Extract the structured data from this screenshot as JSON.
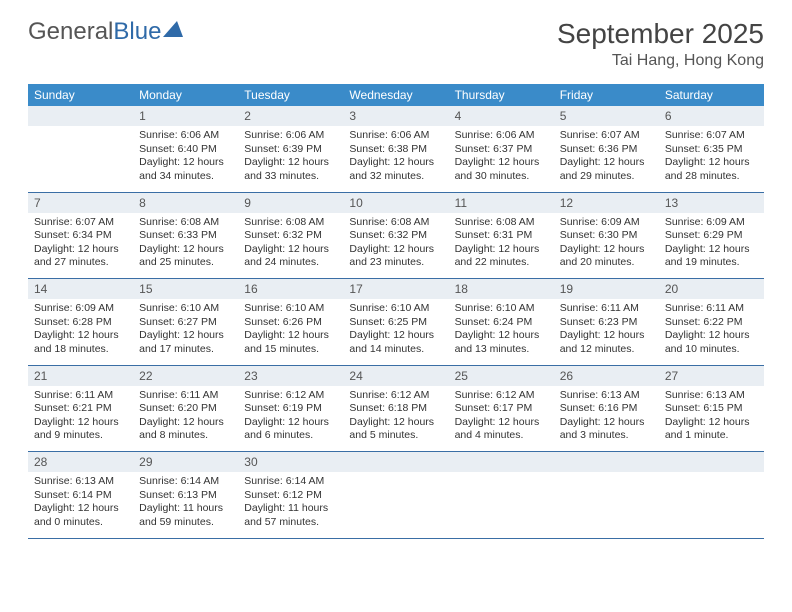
{
  "brand": {
    "name1": "General",
    "name2": "Blue"
  },
  "title": "September 2025",
  "location": "Tai Hang, Hong Kong",
  "colors": {
    "header_bg": "#3a8bc9",
    "header_text": "#ffffff",
    "daynum_bg": "#e9eef3",
    "rule": "#3a6ea5",
    "logo_blue": "#2f6aa8"
  },
  "weekdays": [
    "Sunday",
    "Monday",
    "Tuesday",
    "Wednesday",
    "Thursday",
    "Friday",
    "Saturday"
  ],
  "weeks": [
    {
      "nums": [
        "",
        "1",
        "2",
        "3",
        "4",
        "5",
        "6"
      ],
      "cells": [
        null,
        {
          "sunrise": "Sunrise: 6:06 AM",
          "sunset": "Sunset: 6:40 PM",
          "d1": "Daylight: 12 hours",
          "d2": "and 34 minutes."
        },
        {
          "sunrise": "Sunrise: 6:06 AM",
          "sunset": "Sunset: 6:39 PM",
          "d1": "Daylight: 12 hours",
          "d2": "and 33 minutes."
        },
        {
          "sunrise": "Sunrise: 6:06 AM",
          "sunset": "Sunset: 6:38 PM",
          "d1": "Daylight: 12 hours",
          "d2": "and 32 minutes."
        },
        {
          "sunrise": "Sunrise: 6:06 AM",
          "sunset": "Sunset: 6:37 PM",
          "d1": "Daylight: 12 hours",
          "d2": "and 30 minutes."
        },
        {
          "sunrise": "Sunrise: 6:07 AM",
          "sunset": "Sunset: 6:36 PM",
          "d1": "Daylight: 12 hours",
          "d2": "and 29 minutes."
        },
        {
          "sunrise": "Sunrise: 6:07 AM",
          "sunset": "Sunset: 6:35 PM",
          "d1": "Daylight: 12 hours",
          "d2": "and 28 minutes."
        }
      ]
    },
    {
      "nums": [
        "7",
        "8",
        "9",
        "10",
        "11",
        "12",
        "13"
      ],
      "cells": [
        {
          "sunrise": "Sunrise: 6:07 AM",
          "sunset": "Sunset: 6:34 PM",
          "d1": "Daylight: 12 hours",
          "d2": "and 27 minutes."
        },
        {
          "sunrise": "Sunrise: 6:08 AM",
          "sunset": "Sunset: 6:33 PM",
          "d1": "Daylight: 12 hours",
          "d2": "and 25 minutes."
        },
        {
          "sunrise": "Sunrise: 6:08 AM",
          "sunset": "Sunset: 6:32 PM",
          "d1": "Daylight: 12 hours",
          "d2": "and 24 minutes."
        },
        {
          "sunrise": "Sunrise: 6:08 AM",
          "sunset": "Sunset: 6:32 PM",
          "d1": "Daylight: 12 hours",
          "d2": "and 23 minutes."
        },
        {
          "sunrise": "Sunrise: 6:08 AM",
          "sunset": "Sunset: 6:31 PM",
          "d1": "Daylight: 12 hours",
          "d2": "and 22 minutes."
        },
        {
          "sunrise": "Sunrise: 6:09 AM",
          "sunset": "Sunset: 6:30 PM",
          "d1": "Daylight: 12 hours",
          "d2": "and 20 minutes."
        },
        {
          "sunrise": "Sunrise: 6:09 AM",
          "sunset": "Sunset: 6:29 PM",
          "d1": "Daylight: 12 hours",
          "d2": "and 19 minutes."
        }
      ]
    },
    {
      "nums": [
        "14",
        "15",
        "16",
        "17",
        "18",
        "19",
        "20"
      ],
      "cells": [
        {
          "sunrise": "Sunrise: 6:09 AM",
          "sunset": "Sunset: 6:28 PM",
          "d1": "Daylight: 12 hours",
          "d2": "and 18 minutes."
        },
        {
          "sunrise": "Sunrise: 6:10 AM",
          "sunset": "Sunset: 6:27 PM",
          "d1": "Daylight: 12 hours",
          "d2": "and 17 minutes."
        },
        {
          "sunrise": "Sunrise: 6:10 AM",
          "sunset": "Sunset: 6:26 PM",
          "d1": "Daylight: 12 hours",
          "d2": "and 15 minutes."
        },
        {
          "sunrise": "Sunrise: 6:10 AM",
          "sunset": "Sunset: 6:25 PM",
          "d1": "Daylight: 12 hours",
          "d2": "and 14 minutes."
        },
        {
          "sunrise": "Sunrise: 6:10 AM",
          "sunset": "Sunset: 6:24 PM",
          "d1": "Daylight: 12 hours",
          "d2": "and 13 minutes."
        },
        {
          "sunrise": "Sunrise: 6:11 AM",
          "sunset": "Sunset: 6:23 PM",
          "d1": "Daylight: 12 hours",
          "d2": "and 12 minutes."
        },
        {
          "sunrise": "Sunrise: 6:11 AM",
          "sunset": "Sunset: 6:22 PM",
          "d1": "Daylight: 12 hours",
          "d2": "and 10 minutes."
        }
      ]
    },
    {
      "nums": [
        "21",
        "22",
        "23",
        "24",
        "25",
        "26",
        "27"
      ],
      "cells": [
        {
          "sunrise": "Sunrise: 6:11 AM",
          "sunset": "Sunset: 6:21 PM",
          "d1": "Daylight: 12 hours",
          "d2": "and 9 minutes."
        },
        {
          "sunrise": "Sunrise: 6:11 AM",
          "sunset": "Sunset: 6:20 PM",
          "d1": "Daylight: 12 hours",
          "d2": "and 8 minutes."
        },
        {
          "sunrise": "Sunrise: 6:12 AM",
          "sunset": "Sunset: 6:19 PM",
          "d1": "Daylight: 12 hours",
          "d2": "and 6 minutes."
        },
        {
          "sunrise": "Sunrise: 6:12 AM",
          "sunset": "Sunset: 6:18 PM",
          "d1": "Daylight: 12 hours",
          "d2": "and 5 minutes."
        },
        {
          "sunrise": "Sunrise: 6:12 AM",
          "sunset": "Sunset: 6:17 PM",
          "d1": "Daylight: 12 hours",
          "d2": "and 4 minutes."
        },
        {
          "sunrise": "Sunrise: 6:13 AM",
          "sunset": "Sunset: 6:16 PM",
          "d1": "Daylight: 12 hours",
          "d2": "and 3 minutes."
        },
        {
          "sunrise": "Sunrise: 6:13 AM",
          "sunset": "Sunset: 6:15 PM",
          "d1": "Daylight: 12 hours",
          "d2": "and 1 minute."
        }
      ]
    },
    {
      "nums": [
        "28",
        "29",
        "30",
        "",
        "",
        "",
        ""
      ],
      "cells": [
        {
          "sunrise": "Sunrise: 6:13 AM",
          "sunset": "Sunset: 6:14 PM",
          "d1": "Daylight: 12 hours",
          "d2": "and 0 minutes."
        },
        {
          "sunrise": "Sunrise: 6:14 AM",
          "sunset": "Sunset: 6:13 PM",
          "d1": "Daylight: 11 hours",
          "d2": "and 59 minutes."
        },
        {
          "sunrise": "Sunrise: 6:14 AM",
          "sunset": "Sunset: 6:12 PM",
          "d1": "Daylight: 11 hours",
          "d2": "and 57 minutes."
        },
        null,
        null,
        null,
        null
      ]
    }
  ]
}
